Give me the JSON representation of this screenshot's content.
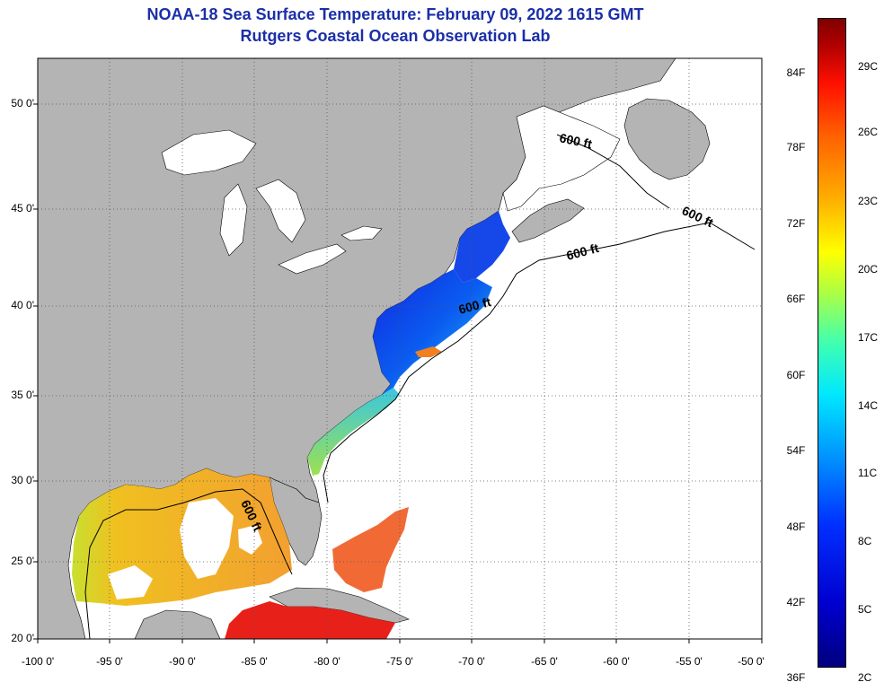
{
  "header": {
    "title": "NOAA-18 Sea Surface Temperature:  February 09, 2022 1615 GMT",
    "subtitle": "Rutgers Coastal Ocean Observation Lab"
  },
  "axes": {
    "lat_labels": [
      "50 0'",
      "45 0'",
      "40 0'",
      "35 0'",
      "30 0'",
      "25 0'",
      "20 0'"
    ],
    "lon_labels": [
      "-100 0'",
      "-95 0'",
      "-90 0'",
      "-85 0'",
      "-80 0'",
      "-75 0'",
      "-70 0'",
      "-65 0'",
      "-60 0'",
      "-55 0'",
      "-50 0'"
    ]
  },
  "contour_label": "600 ft",
  "colorbar": {
    "fahrenheit": [
      "84F",
      "78F",
      "72F",
      "66F",
      "60F",
      "54F",
      "48F",
      "42F",
      "36F"
    ],
    "celsius": [
      "29C",
      "26C",
      "23C",
      "20C",
      "17C",
      "14C",
      "11C",
      "8C",
      "5C",
      "2C"
    ]
  },
  "colors": {
    "land": "#b4b4b4",
    "no_data": "#ffffff",
    "title": "#1b2fa8"
  }
}
